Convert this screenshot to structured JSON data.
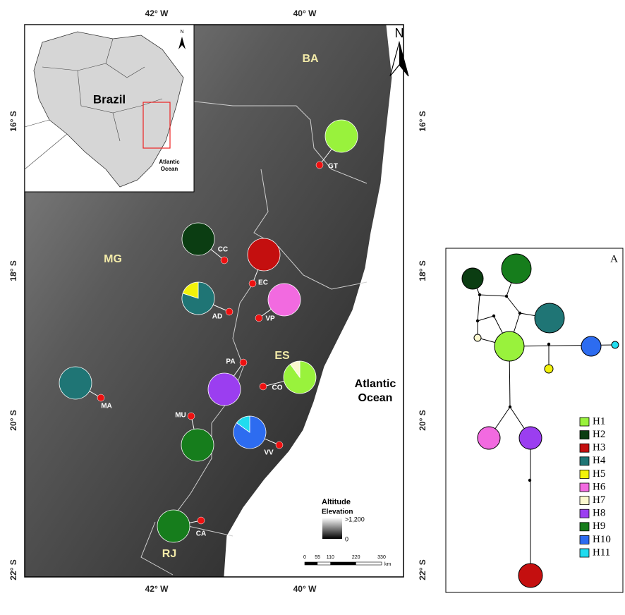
{
  "map": {
    "axis": {
      "top": [
        "42° W",
        "40° W"
      ],
      "bottom": [
        "42° W",
        "40° W"
      ],
      "left": [
        "16° S",
        "18° S",
        "20° S",
        "22° S"
      ],
      "right": [
        "16° S",
        "18° S",
        "20° S",
        "22° S"
      ]
    },
    "north": "N",
    "inset": {
      "country": "Brazil",
      "ocean": [
        "Atlantic",
        "Ocean"
      ],
      "north": "N"
    },
    "states": [
      "BA",
      "MG",
      "ES",
      "RJ"
    ],
    "ocean": [
      "Atlantic",
      "Ocean"
    ],
    "sites": [
      {
        "label": "GT",
        "pie": [
          {
            "haplotype": 0,
            "share": 100
          }
        ]
      },
      {
        "label": "CC",
        "pie": [
          {
            "haplotype": 1,
            "share": 100
          }
        ]
      },
      {
        "label": "EC",
        "pie": [
          {
            "haplotype": 2,
            "share": 100
          }
        ]
      },
      {
        "label": "AD",
        "pie": [
          {
            "haplotype": 3,
            "share": 80
          },
          {
            "haplotype": 4,
            "share": 20
          }
        ]
      },
      {
        "label": "VP",
        "pie": [
          {
            "haplotype": 5,
            "share": 100
          }
        ]
      },
      {
        "label": "PA",
        "pie": [
          {
            "haplotype": 7,
            "share": 100
          }
        ]
      },
      {
        "label": "CO",
        "pie": [
          {
            "haplotype": 0,
            "share": 90
          },
          {
            "haplotype": 6,
            "share": 10
          }
        ]
      },
      {
        "label": "MA",
        "pie": [
          {
            "haplotype": 3,
            "share": 100
          }
        ]
      },
      {
        "label": "MU",
        "pie": [
          {
            "haplotype": 8,
            "share": 100
          }
        ]
      },
      {
        "label": "VV",
        "pie": [
          {
            "haplotype": 9,
            "share": 85
          },
          {
            "haplotype": 10,
            "share": 15
          }
        ]
      },
      {
        "label": "CA",
        "pie": [
          {
            "haplotype": 8,
            "share": 100
          }
        ]
      }
    ],
    "altitude_legend": {
      "title": "Altitude",
      "subtitle": "Elevation",
      "high": ">1,200",
      "low": 0
    },
    "scale_bar": {
      "ticks": [
        0,
        55,
        110,
        220,
        330
      ],
      "unit": "km"
    }
  },
  "network": {
    "panel_label": "A",
    "legend": [
      {
        "name": "H1",
        "color": "#99f23c"
      },
      {
        "name": "H2",
        "color": "#0b3d12"
      },
      {
        "name": "H3",
        "color": "#c40f0f"
      },
      {
        "name": "H4",
        "color": "#1f7575"
      },
      {
        "name": "H5",
        "color": "#f2f20a"
      },
      {
        "name": "H6",
        "color": "#f26ae0"
      },
      {
        "name": "H7",
        "color": "#fbf8cf"
      },
      {
        "name": "H8",
        "color": "#9b3ef0"
      },
      {
        "name": "H9",
        "color": "#167d1c"
      },
      {
        "name": "H10",
        "color": "#2d6cf0"
      },
      {
        "name": "H11",
        "color": "#20dcef"
      }
    ]
  }
}
